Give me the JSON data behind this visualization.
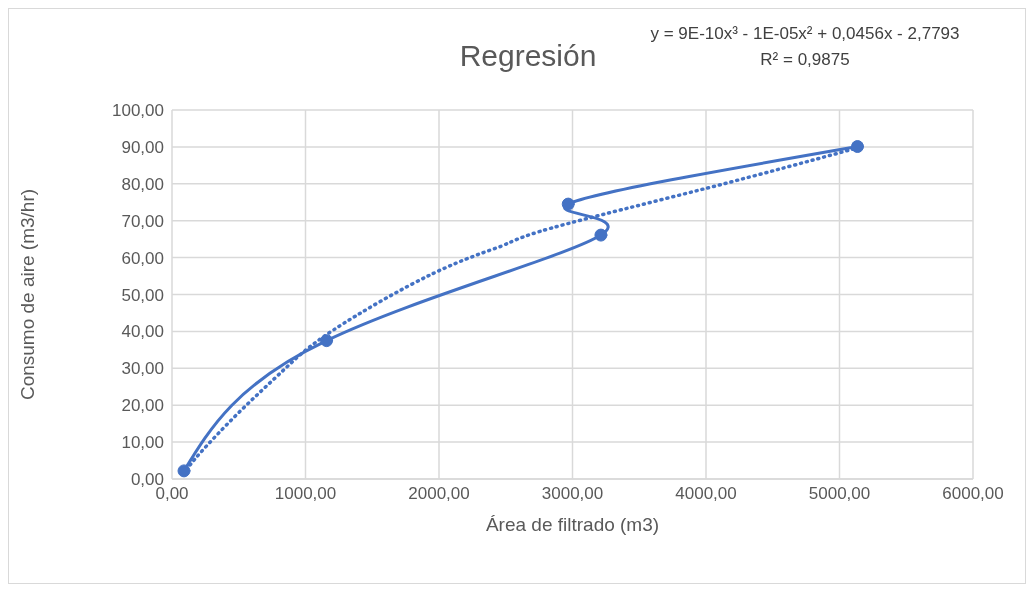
{
  "chart_data": {
    "type": "line",
    "title": "Regresión",
    "xlabel": "Área de filtrado (m3)",
    "ylabel": "Consumo de aire (m3/hr)",
    "annotations": [
      "y = 9E-10x³ - 1E-05x² + 0,0456x - 2,7793",
      "R² = 0,9875"
    ],
    "xlim": [
      0,
      6000
    ],
    "xticks": [
      {
        "value": 0,
        "label": "0,00"
      },
      {
        "value": 1000,
        "label": "1000,00"
      },
      {
        "value": 2000,
        "label": "2000,00"
      },
      {
        "value": 3000,
        "label": "3000,00"
      },
      {
        "value": 4000,
        "label": "4000,00"
      },
      {
        "value": 5000,
        "label": "5000,00"
      },
      {
        "value": 6000,
        "label": "6000,00"
      }
    ],
    "ylim": [
      0,
      100
    ],
    "yticks": [
      {
        "value": 0,
        "label": "0,00"
      },
      {
        "value": 10,
        "label": "10,00"
      },
      {
        "value": 20,
        "label": "20,00"
      },
      {
        "value": 30,
        "label": "30,00"
      },
      {
        "value": 40,
        "label": "40,00"
      },
      {
        "value": 50,
        "label": "50,00"
      },
      {
        "value": 60,
        "label": "60,00"
      },
      {
        "value": 70,
        "label": "70,00"
      },
      {
        "value": 80,
        "label": "80,00"
      },
      {
        "value": 90,
        "label": "90,00"
      },
      {
        "value": 100,
        "label": "100,00"
      }
    ],
    "grid": true,
    "series": [
      {
        "color": "#4472c4",
        "marker": "circle",
        "line_style": "solid",
        "x": [
          90,
          1158,
          3213,
          2968,
          5135
        ],
        "values": [
          2.2,
          37.5,
          66.1,
          74.5,
          90.1
        ]
      },
      {
        "color": "#4472c4",
        "marker": "none",
        "line_style": "dotted",
        "x": [
          110,
          210,
          500,
          835,
          1210,
          1962,
          2466,
          2842,
          4015,
          5120
        ],
        "values": [
          2.5,
          7,
          18,
          29.5,
          40.4,
          55.8,
          63.1,
          68,
          78.9,
          89.6
        ]
      }
    ]
  }
}
